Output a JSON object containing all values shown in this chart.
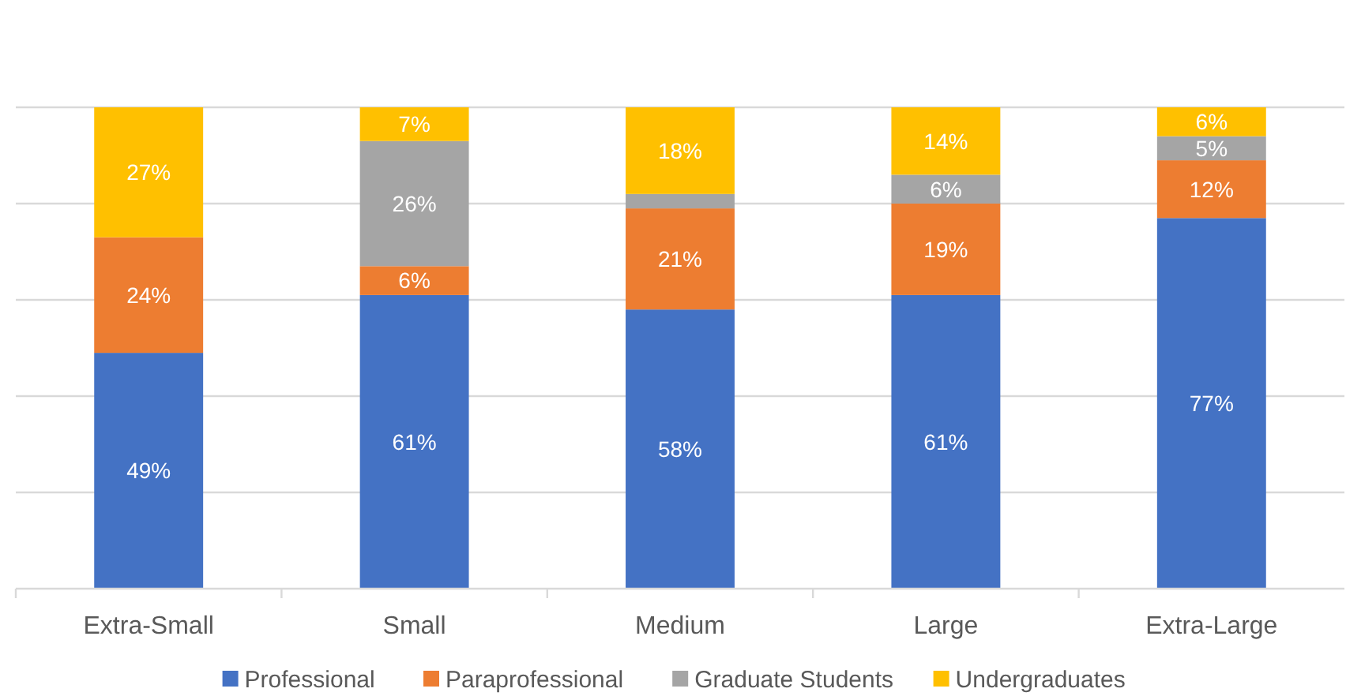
{
  "chart_data": {
    "type": "bar",
    "stacked": true,
    "categories": [
      "Extra-Small",
      "Small",
      "Medium",
      "Large",
      "Extra-Large"
    ],
    "series": [
      {
        "name": "Professional",
        "color": "#4472c4",
        "values": [
          49,
          61,
          58,
          61,
          77
        ],
        "value_labels": [
          "49%",
          "61%",
          "58%",
          "61%",
          "77%"
        ]
      },
      {
        "name": "Paraprofessional",
        "color": "#ed7d31",
        "values": [
          24,
          6,
          21,
          19,
          12
        ],
        "value_labels": [
          "24%",
          "6%",
          "21%",
          "19%",
          "12%"
        ]
      },
      {
        "name": "Graduate Students",
        "color": "#a5a5a5",
        "values": [
          0,
          26,
          3,
          6,
          5
        ],
        "value_labels": [
          null,
          "26%",
          null,
          "6%",
          "5%"
        ]
      },
      {
        "name": "Undergraduates",
        "color": "#ffc000",
        "values": [
          27,
          7,
          18,
          14,
          6
        ],
        "value_labels": [
          "27%",
          "7%",
          "18%",
          "14%",
          "6%"
        ]
      }
    ],
    "ylim": [
      0,
      100
    ],
    "yticks": [
      {
        "value": 0,
        "label": null
      },
      {
        "value": 20,
        "label": null
      },
      {
        "value": 40,
        "label": null
      },
      {
        "value": 60,
        "label": null
      },
      {
        "value": 80,
        "label": null
      },
      {
        "value": 100,
        "label": null
      }
    ],
    "tick_labels": "x",
    "grid": "y",
    "legend": "bottom"
  }
}
